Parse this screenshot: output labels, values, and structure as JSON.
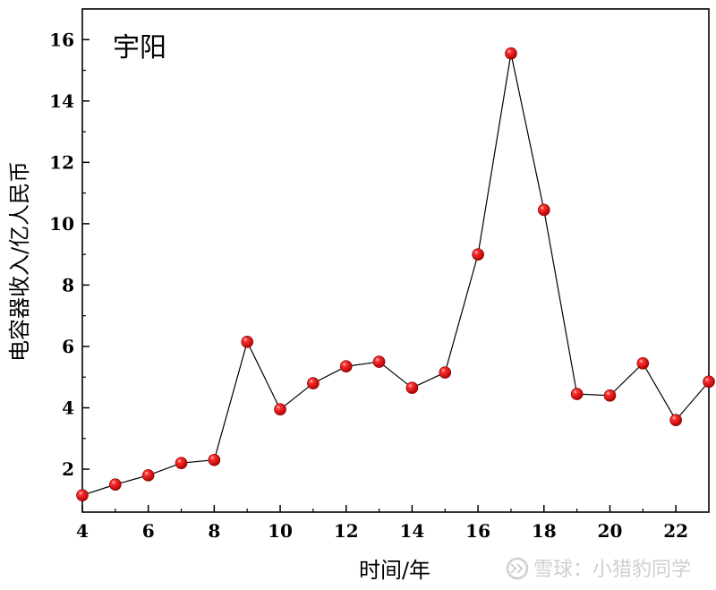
{
  "chart_data": {
    "type": "line",
    "title": "宇阳",
    "xlabel": "时间/年",
    "ylabel": "电容器收入/亿人民币",
    "xlim": [
      4,
      23
    ],
    "ylim": [
      0.6,
      17
    ],
    "x_ticks": [
      4,
      6,
      8,
      10,
      12,
      14,
      16,
      18,
      20,
      22
    ],
    "y_ticks": [
      2,
      4,
      6,
      8,
      10,
      12,
      14,
      16
    ],
    "grid": false,
    "series": [
      {
        "x": [
          4,
          5,
          6,
          7,
          8,
          9,
          10,
          11,
          12,
          13,
          14,
          15,
          16,
          17,
          18,
          19,
          20,
          21,
          22,
          23
        ],
        "values": [
          1.15,
          1.5,
          1.8,
          2.2,
          2.3,
          6.15,
          3.95,
          4.8,
          5.35,
          5.5,
          4.65,
          5.15,
          9.0,
          15.55,
          10.45,
          4.45,
          4.4,
          5.45,
          3.6,
          4.85
        ]
      }
    ],
    "marker_color": "#ee0000",
    "line_color": "#000000"
  },
  "watermark": "雪球：小猎豹同学"
}
